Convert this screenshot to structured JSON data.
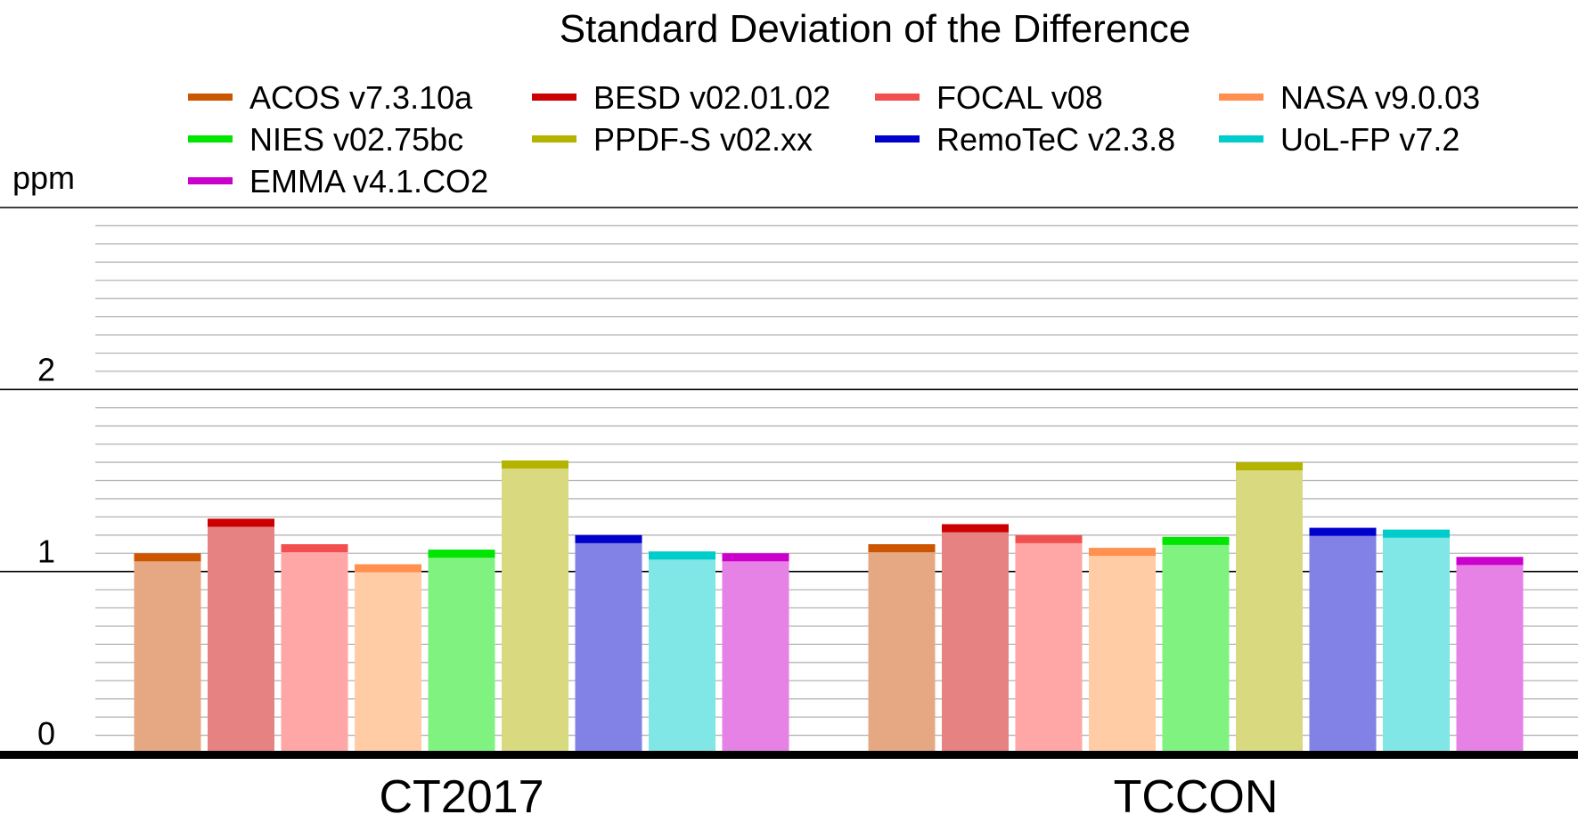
{
  "chart_data": {
    "type": "bar",
    "title": "Standard Deviation of the Difference",
    "ylabel": "ppm",
    "ylim": [
      0,
      3
    ],
    "yticks": [
      0,
      1,
      2
    ],
    "categories": [
      "CT2017",
      "TCCON"
    ],
    "legend_position": "top",
    "grid": true,
    "series": [
      {
        "name": "ACOS v7.3.10a",
        "values": [
          1.1,
          1.15
        ],
        "color": "#cc5500",
        "fill": "#e6a882"
      },
      {
        "name": "BESD v02.01.02",
        "values": [
          1.29,
          1.26
        ],
        "color": "#cc0000",
        "fill": "#e68282"
      },
      {
        "name": "FOCAL v08",
        "values": [
          1.15,
          1.2
        ],
        "color": "#f25050",
        "fill": "#ffa6a6"
      },
      {
        "name": "NASA v9.0.03",
        "values": [
          1.04,
          1.13
        ],
        "color": "#ff904f",
        "fill": "#ffcca6"
      },
      {
        "name": "NIES v02.75bc",
        "values": [
          1.12,
          1.19
        ],
        "color": "#00e600",
        "fill": "#80f280"
      },
      {
        "name": "PPDF-S v02.xx",
        "values": [
          1.61,
          1.6
        ],
        "color": "#b3b300",
        "fill": "#d9d980"
      },
      {
        "name": "RemoTeC v2.3.8",
        "values": [
          1.2,
          1.24
        ],
        "color": "#0000cc",
        "fill": "#8282e6"
      },
      {
        "name": "UoL-FP v7.2",
        "values": [
          1.11,
          1.23
        ],
        "color": "#00cccc",
        "fill": "#80e6e6"
      },
      {
        "name": "EMMA v4.1.CO2",
        "values": [
          1.1,
          1.08
        ],
        "color": "#cc00cc",
        "fill": "#e682e6"
      }
    ]
  }
}
